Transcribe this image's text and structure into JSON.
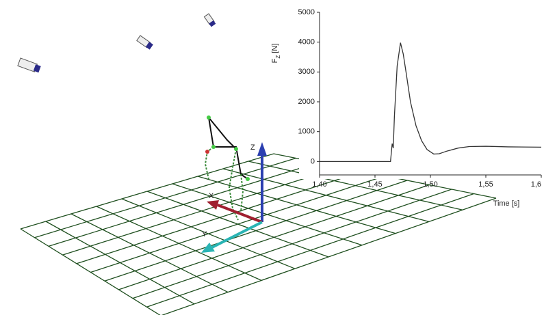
{
  "chart_data": {
    "type": "line",
    "y_label": [
      "F",
      "Z",
      " [N]"
    ],
    "x_label": "Time [s]",
    "x": [
      1.4,
      1.464,
      1.4655,
      1.4665,
      1.4675,
      1.47,
      1.473,
      1.4755,
      1.478,
      1.482,
      1.487,
      1.492,
      1.497,
      1.503,
      1.508,
      1.515,
      1.525,
      1.535,
      1.55,
      1.57,
      1.6
    ],
    "values": [
      0,
      0,
      600,
      450,
      1500,
      3200,
      3980,
      3600,
      3000,
      2000,
      1200,
      700,
      400,
      250,
      260,
      350,
      450,
      500,
      510,
      490,
      480
    ],
    "color": "#333333",
    "xlim": [
      1.4,
      1.6
    ],
    "xticks": [
      {
        "value": 1.4,
        "label": "1,40"
      },
      {
        "value": 1.45,
        "label": "1,45"
      },
      {
        "value": 1.5,
        "label": "1,50"
      },
      {
        "value": 1.55,
        "label": "1,55"
      },
      {
        "value": 1.6,
        "label": "1,6"
      }
    ],
    "ylim": [
      -450,
      5000
    ],
    "yticks": [
      0,
      1000,
      2000,
      3000,
      4000,
      5000
    ]
  },
  "scene": {
    "axis_labels": [
      "X",
      "Y",
      "Z"
    ]
  }
}
